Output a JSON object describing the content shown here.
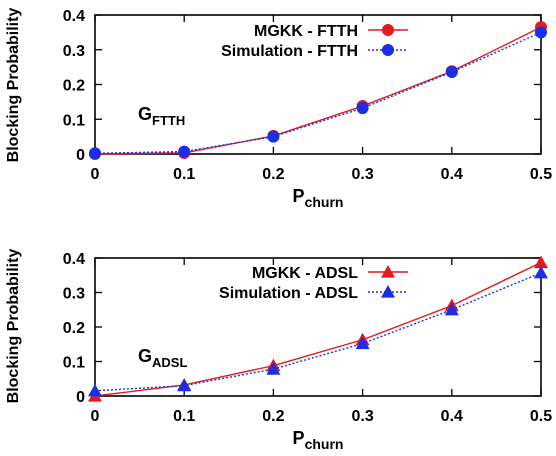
{
  "chart_data": [
    {
      "type": "line",
      "ylabel": "Blocking Probability",
      "xlabel_main": "P",
      "xlabel_sub": "churn",
      "annotation_main": "G",
      "annotation_sub": "FTTH",
      "xlim": [
        0,
        0.5
      ],
      "ylim": [
        0,
        0.4
      ],
      "xticks": [
        "0",
        "0.1",
        "0.2",
        "0.3",
        "0.4",
        "0.5"
      ],
      "yticks": [
        "0",
        "0.1",
        "0.2",
        "0.3",
        "0.4"
      ],
      "legend_position": "top-right",
      "x": [
        0,
        0.1,
        0.2,
        0.3,
        0.4,
        0.5
      ],
      "series": [
        {
          "name": "MGKK - FTTH",
          "values": [
            0,
            0.003,
            0.052,
            0.138,
            0.238,
            0.365
          ],
          "color": "#e41a1c",
          "marker": "circle",
          "line": "solid"
        },
        {
          "name": "Simulation - FTTH",
          "values": [
            0.002,
            0.007,
            0.05,
            0.132,
            0.236,
            0.35
          ],
          "color": "#1a2ee8",
          "marker": "circle",
          "line": "dotted"
        }
      ]
    },
    {
      "type": "line",
      "ylabel": "Blocking Probability",
      "xlabel_main": "P",
      "xlabel_sub": "churn",
      "annotation_main": "G",
      "annotation_sub": "ADSL",
      "xlim": [
        0,
        0.5
      ],
      "ylim": [
        0,
        0.4
      ],
      "xticks": [
        "0",
        "0.1",
        "0.2",
        "0.3",
        "0.4",
        "0.5"
      ],
      "yticks": [
        "0",
        "0.1",
        "0.2",
        "0.3",
        "0.4"
      ],
      "legend_position": "top-right",
      "x": [
        0,
        0.1,
        0.2,
        0.3,
        0.4,
        0.5
      ],
      "series": [
        {
          "name": "MGKK - ADSL",
          "values": [
            0,
            0.032,
            0.088,
            0.163,
            0.262,
            0.387
          ],
          "color": "#e41a1c",
          "marker": "triangle",
          "line": "solid"
        },
        {
          "name": "Simulation - ADSL",
          "values": [
            0.015,
            0.03,
            0.078,
            0.152,
            0.25,
            0.357
          ],
          "color": "#1a2ee8",
          "marker": "triangle",
          "line": "dotted"
        }
      ]
    }
  ]
}
